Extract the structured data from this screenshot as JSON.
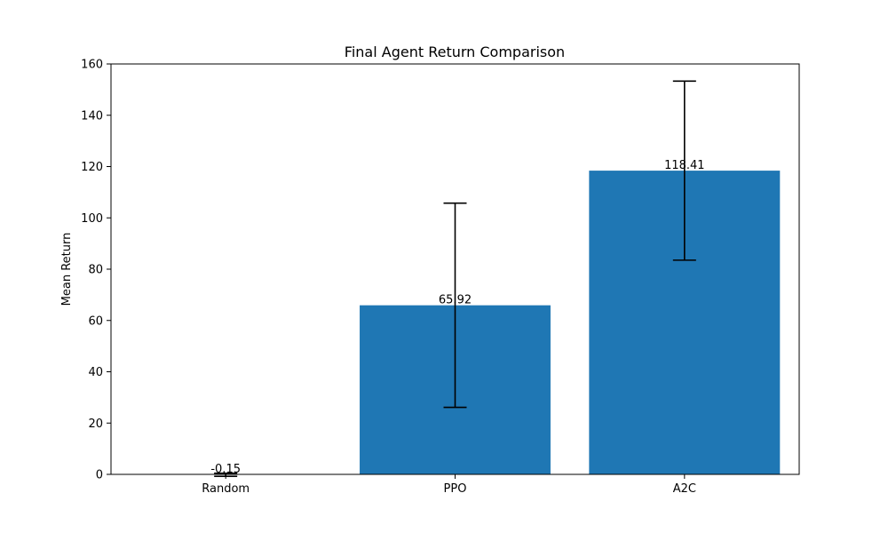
{
  "chart_data": {
    "type": "bar",
    "title": "Final Agent Return Comparison",
    "xlabel": "",
    "ylabel": "Mean Return",
    "categories": [
      "Random",
      "PPO",
      "A2C"
    ],
    "values": [
      -0.15,
      65.92,
      118.41
    ],
    "error": [
      0.6,
      39.8,
      34.9
    ],
    "data_labels": [
      "-0.15",
      "65.92",
      "118.41"
    ],
    "ylim": [
      0,
      160
    ],
    "yticks": [
      0,
      20,
      40,
      60,
      80,
      100,
      120,
      140,
      160
    ],
    "grid": false,
    "legend": "none",
    "bar_color": "#1f77b4",
    "error_color": "#000000"
  }
}
